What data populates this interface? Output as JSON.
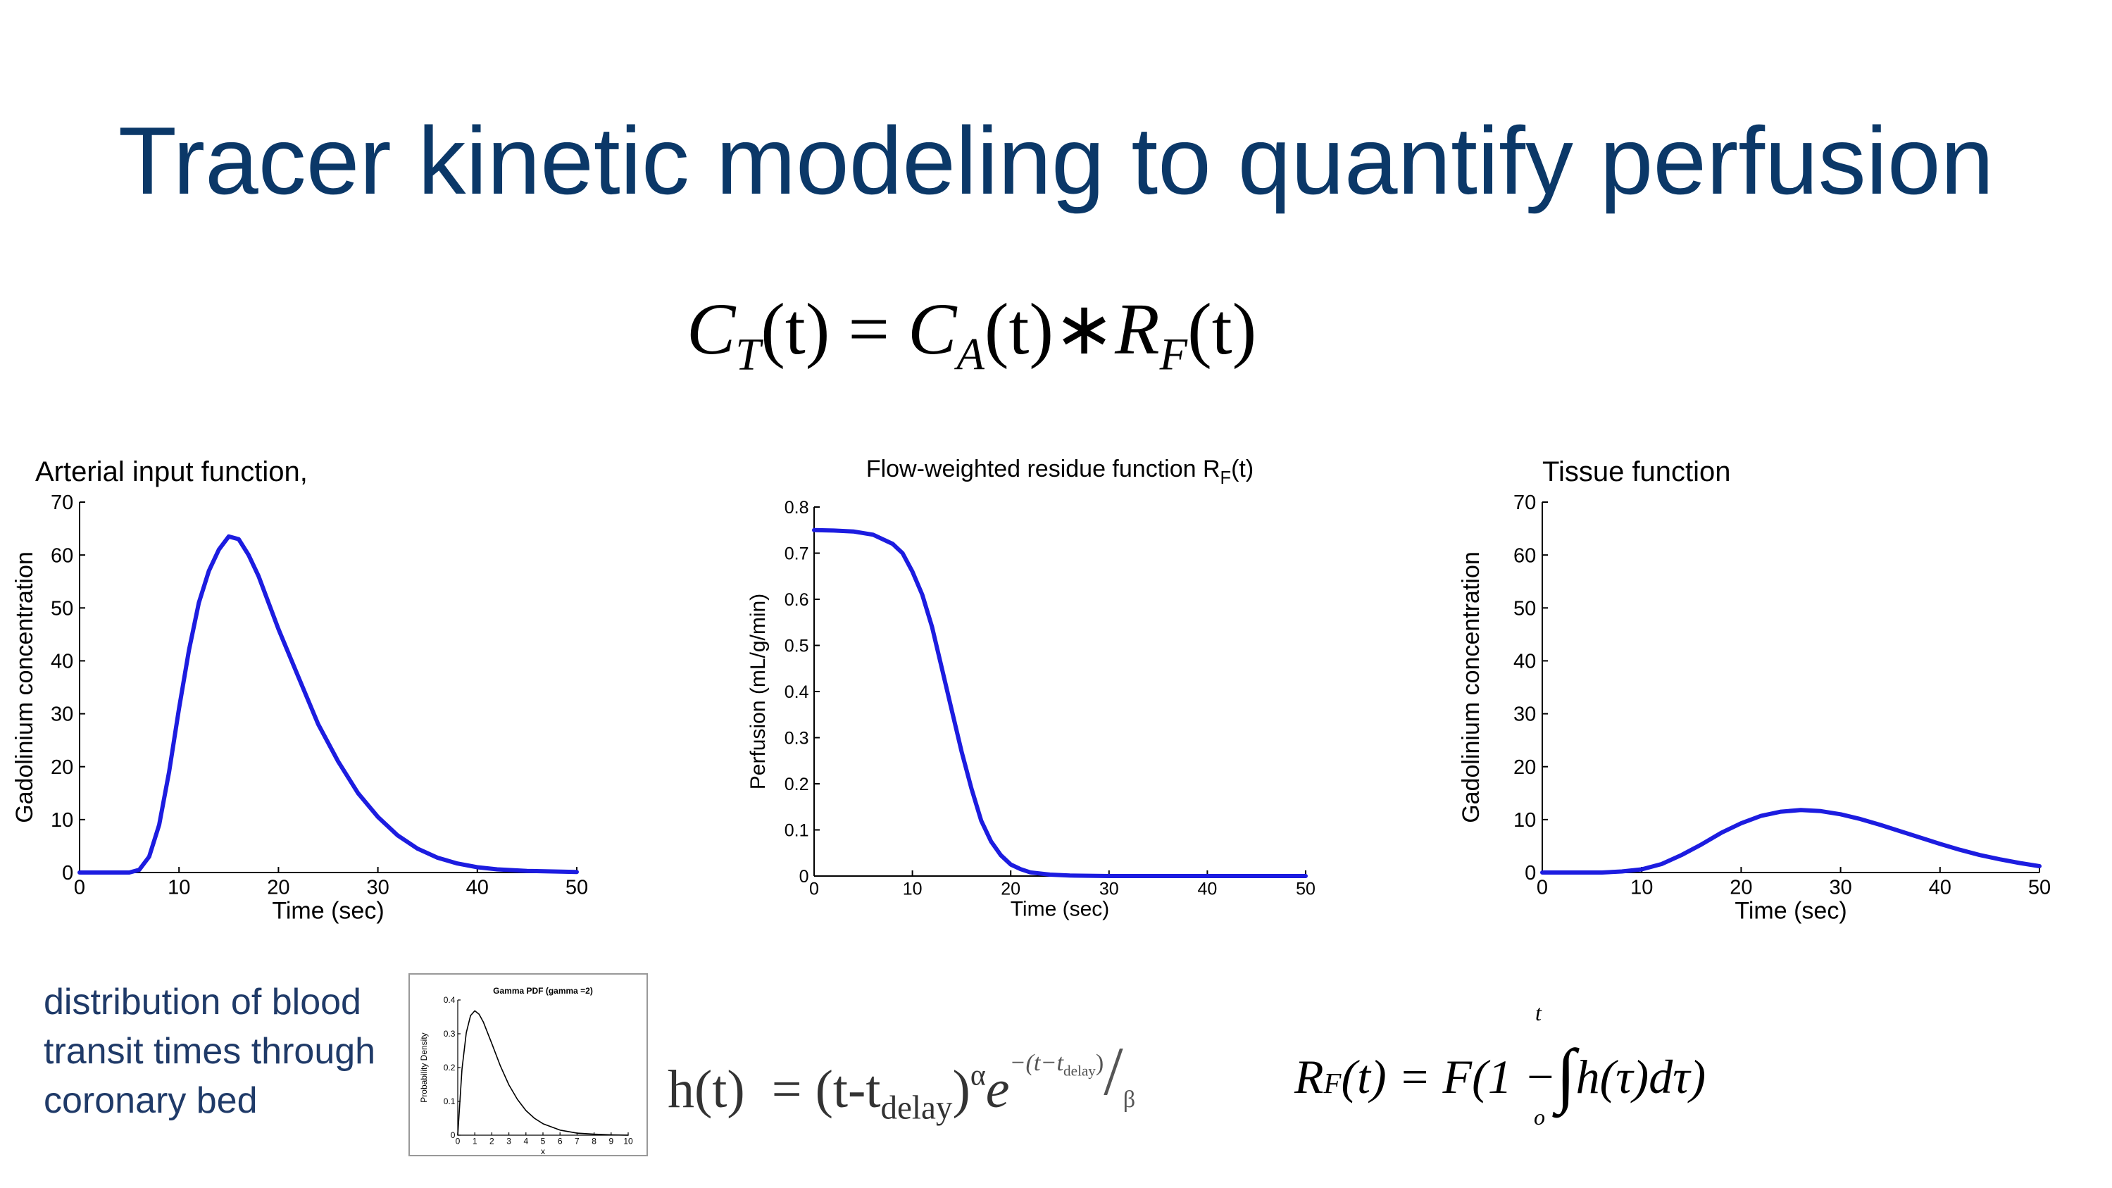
{
  "slide": {
    "title": "Tracer kinetic modeling to quantify perfusion",
    "description": [
      "distribution of blood",
      "transit times through",
      "coronary bed"
    ]
  },
  "equations": {
    "main": {
      "lhs": "C",
      "lhs_sub": "T",
      "var": "(t)",
      "eq": "=",
      "rhs1": "C",
      "rhs1_sub": "A",
      "op": "∗",
      "rhs2": "R",
      "rhs2_sub": "F"
    },
    "ht": {
      "lhs": "h(t)",
      "eq": "=",
      "base": "(t-t",
      "sub": "delay",
      "close": ")",
      "alpha": "α",
      "e": "e",
      "exponent": "−(t−t",
      "exp_sub": "delay",
      "exp_close": ")",
      "slash": "/",
      "beta": "β"
    },
    "rf": {
      "lhs": "R",
      "lhs_sub": "F",
      "body1": "(t) = F(1 −",
      "body2": "h(τ)dτ)",
      "upper": "t",
      "lower": "o"
    }
  },
  "chart_data": [
    {
      "type": "line",
      "title": "Arterial input function,",
      "xlabel": "Time (sec)",
      "ylabel": "Gadolinium concentration",
      "xlim": [
        0,
        50
      ],
      "ylim": [
        0,
        70
      ],
      "xticks": [
        0,
        10,
        20,
        30,
        40,
        50
      ],
      "yticks": [
        0,
        10,
        20,
        30,
        40,
        50,
        60,
        70
      ],
      "grid": false,
      "color": "#1c1ce0",
      "x": [
        0,
        5,
        6,
        7,
        8,
        9,
        10,
        11,
        12,
        13,
        14,
        15,
        16,
        17,
        18,
        19,
        20,
        22,
        24,
        26,
        28,
        30,
        32,
        34,
        36,
        38,
        40,
        42,
        45,
        50
      ],
      "y": [
        0,
        0,
        0.5,
        3,
        9,
        19,
        31,
        42,
        51,
        57,
        61,
        63.5,
        63,
        60,
        56,
        51,
        46,
        37,
        28,
        21,
        15,
        10.5,
        7,
        4.5,
        2.8,
        1.7,
        1,
        0.6,
        0.3,
        0.1
      ]
    },
    {
      "type": "line",
      "title": "Flow-weighted residue function R",
      "title_sub": "F",
      "title_tail": "(t)",
      "xlabel": "Time (sec)",
      "ylabel": "Perfusion (mL/g/min)",
      "xlim": [
        0,
        50
      ],
      "ylim": [
        0,
        0.8
      ],
      "xticks": [
        0,
        10,
        20,
        30,
        40,
        50
      ],
      "yticks": [
        0,
        0.1,
        0.2,
        0.3,
        0.4,
        0.5,
        0.6,
        0.7,
        0.8
      ],
      "grid": false,
      "color": "#1c1ce0",
      "x": [
        0,
        2,
        4,
        6,
        8,
        9,
        10,
        11,
        12,
        13,
        14,
        15,
        16,
        17,
        18,
        19,
        20,
        21,
        22,
        24,
        26,
        30,
        40,
        50
      ],
      "y": [
        0.75,
        0.749,
        0.747,
        0.74,
        0.72,
        0.7,
        0.66,
        0.61,
        0.54,
        0.45,
        0.36,
        0.27,
        0.19,
        0.12,
        0.075,
        0.045,
        0.025,
        0.015,
        0.008,
        0.003,
        0.001,
        0,
        0,
        0
      ]
    },
    {
      "type": "line",
      "title": "Tissue function",
      "xlabel": "Time (sec)",
      "ylabel": "Gadolinium concentration",
      "xlim": [
        0,
        50
      ],
      "ylim": [
        0,
        70
      ],
      "xticks": [
        0,
        10,
        20,
        30,
        40,
        50
      ],
      "yticks": [
        0,
        10,
        20,
        30,
        40,
        50,
        60,
        70
      ],
      "grid": false,
      "color": "#1c1ce0",
      "x": [
        0,
        6,
        8,
        10,
        12,
        14,
        16,
        18,
        20,
        22,
        24,
        26,
        28,
        30,
        32,
        34,
        36,
        38,
        40,
        42,
        44,
        46,
        48,
        50
      ],
      "y": [
        0,
        0,
        0.2,
        0.6,
        1.6,
        3.3,
        5.3,
        7.5,
        9.3,
        10.7,
        11.5,
        11.8,
        11.6,
        11,
        10.1,
        9,
        7.8,
        6.6,
        5.4,
        4.3,
        3.3,
        2.5,
        1.8,
        1.2
      ]
    },
    {
      "type": "line",
      "title": "Gamma PDF (gamma =2)",
      "xlabel": "x",
      "ylabel": "Probability Density",
      "xlim": [
        0,
        10
      ],
      "ylim": [
        0,
        0.4
      ],
      "xticks": [
        0,
        1,
        2,
        3,
        4,
        5,
        6,
        7,
        8,
        9,
        10
      ],
      "yticks": [
        0,
        0.1,
        0.2,
        0.3,
        0.4
      ],
      "grid": false,
      "color": "#000000",
      "x": [
        0,
        0.25,
        0.5,
        0.75,
        1,
        1.25,
        1.5,
        2,
        2.5,
        3,
        3.5,
        4,
        4.5,
        5,
        6,
        7,
        8,
        9,
        10
      ],
      "y": [
        0,
        0.195,
        0.303,
        0.354,
        0.368,
        0.358,
        0.335,
        0.271,
        0.205,
        0.149,
        0.106,
        0.073,
        0.05,
        0.034,
        0.015,
        0.006,
        0.003,
        0.001,
        0
      ]
    }
  ]
}
